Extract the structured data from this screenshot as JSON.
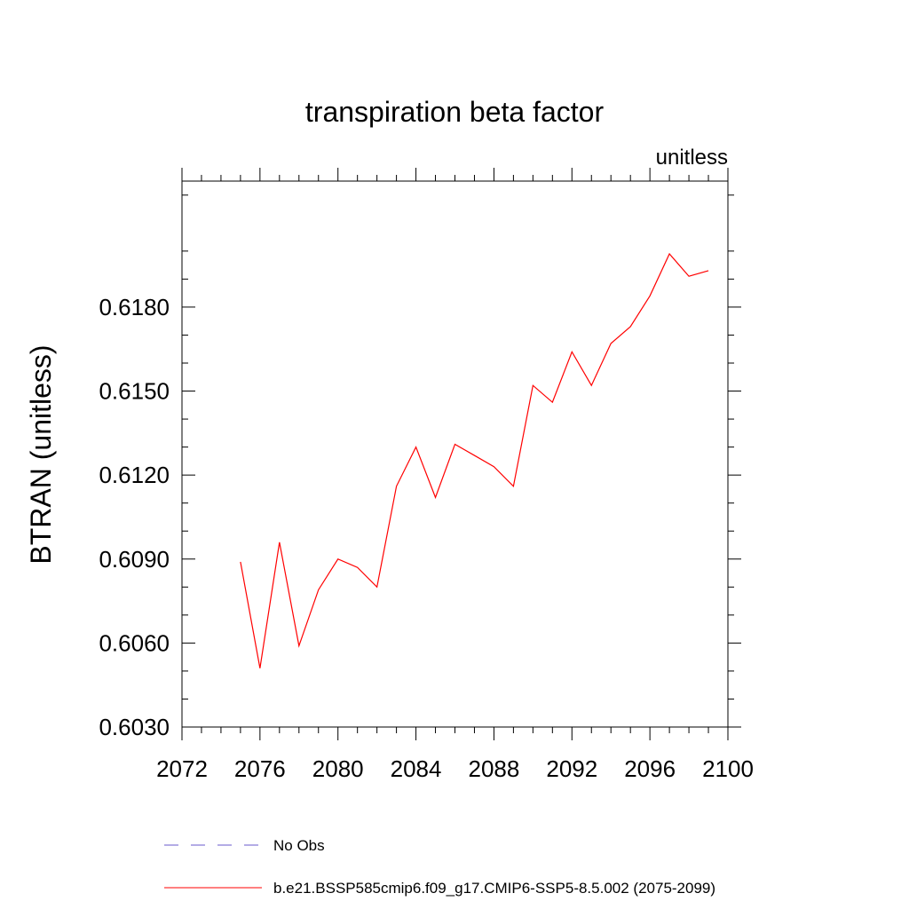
{
  "chart_data": {
    "type": "line",
    "title": "transpiration beta factor",
    "subtitle": "unitless",
    "xlabel": "",
    "ylabel": "BTRAN  (unitless)",
    "xlim": [
      2072,
      2100
    ],
    "ylim": [
      0.603,
      0.6225
    ],
    "x_ticks": [
      "2072",
      "2076",
      "2080",
      "2084",
      "2088",
      "2092",
      "2096",
      "2100"
    ],
    "y_ticks": [
      "0.6030",
      "0.6060",
      "0.6090",
      "0.6120",
      "0.6150",
      "0.6180"
    ],
    "grid": false,
    "legend_position": "bottom",
    "legend": [
      {
        "label": "No Obs",
        "color": "#6a5acd",
        "style": "dashed"
      },
      {
        "label": "b.e21.BSSP585cmip6.f09_g17.CMIP6-SSP5-8.5.002 (2075-2099)",
        "color": "#ff0000",
        "style": "solid"
      }
    ],
    "series": [
      {
        "name": "b.e21.BSSP585cmip6.f09_g17.CMIP6-SSP5-8.5.002 (2075-2099)",
        "color": "#ff0000",
        "x": [
          2075,
          2076,
          2077,
          2078,
          2079,
          2080,
          2081,
          2082,
          2083,
          2084,
          2085,
          2086,
          2087,
          2088,
          2089,
          2090,
          2091,
          2092,
          2093,
          2094,
          2095,
          2096,
          2097,
          2098,
          2099
        ],
        "y": [
          0.6089,
          0.6051,
          0.6096,
          0.6059,
          0.6079,
          0.609,
          0.6087,
          0.608,
          0.6116,
          0.613,
          0.6112,
          0.6131,
          0.6127,
          0.6123,
          0.6116,
          0.6152,
          0.6146,
          0.6164,
          0.6152,
          0.6167,
          0.6173,
          0.6184,
          0.6199,
          0.6191,
          0.6193
        ]
      }
    ]
  }
}
